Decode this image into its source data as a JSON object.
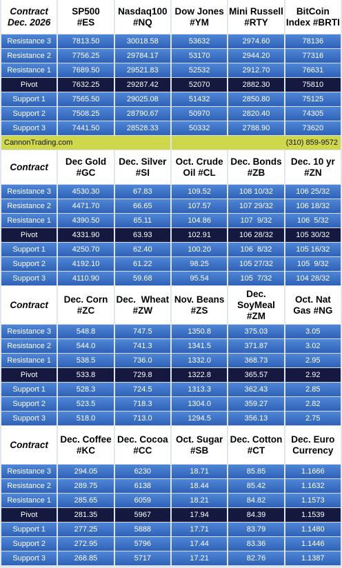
{
  "sections": [
    {
      "header": [
        [
          "Contract",
          "Dec. 2026"
        ],
        [
          "SP500",
          "#ES"
        ],
        [
          "Nasdaq100",
          "#NQ"
        ],
        [
          "Dow Jones",
          "#YM"
        ],
        [
          "Mini Russell",
          "#RTY"
        ],
        [
          "BitCoin",
          "Index #BRTI"
        ]
      ],
      "rows": [
        [
          "Resistance 3",
          "7813.50",
          "30018.58",
          "53632",
          "2974.60",
          "78136"
        ],
        [
          "Resistance 2",
          "7756.25",
          "29784.17",
          "53170",
          "2944.20",
          "77316"
        ],
        [
          "Resistance 1",
          "7689.50",
          "29521.83",
          "52532",
          "2912.70",
          "76631"
        ],
        [
          "Pivot",
          "7632.25",
          "29287.42",
          "52070",
          "2882.30",
          "75810"
        ],
        [
          "Support 1",
          "7565.50",
          "29025.08",
          "51432",
          "2850.80",
          "75125"
        ],
        [
          "Support 2",
          "7508.25",
          "28790.67",
          "50970",
          "2820.40",
          "74305"
        ],
        [
          "Support 3",
          "7441.50",
          "28528.33",
          "50332",
          "2788.90",
          "73620"
        ]
      ]
    },
    {
      "header": [
        [
          "Contract"
        ],
        [
          "Dec Gold",
          "#GC"
        ],
        [
          "Dec. Silver",
          "#SI"
        ],
        [
          "Oct. Crude",
          "Oil #CL"
        ],
        [
          "Dec. Bonds",
          "#ZB"
        ],
        [
          "Dec. 10 yr",
          "#ZN"
        ]
      ],
      "rows": [
        [
          "Resistance 3",
          "4530.30",
          "67.83",
          "109.52",
          "108 10/32",
          "106 25/32"
        ],
        [
          "Resistance 2",
          "4471.70",
          "66.65",
          "107.57",
          "107 29/32",
          "106 18/32"
        ],
        [
          "Resistance 1",
          "4390.50",
          "65.11",
          "104.86",
          "107  9/32",
          "106  5/32"
        ],
        [
          "Pivot",
          "4331.90",
          "63.93",
          "102.91",
          "106 28/32",
          "105 30/32"
        ],
        [
          "Support 1",
          "4250.70",
          "62.40",
          "100.20",
          "106  8/32",
          "105 16/32"
        ],
        [
          "Support 2",
          "4192.10",
          "61.22",
          "98.25",
          "105 27/32",
          "105  9/32"
        ],
        [
          "Support 3",
          "4110.90",
          "59.68",
          "95.54",
          "105  7/32",
          "104 28/32"
        ]
      ]
    },
    {
      "header": [
        [
          "Contract"
        ],
        [
          "Dec. Corn",
          "#ZC"
        ],
        [
          "Dec.  Wheat",
          "#ZW"
        ],
        [
          "Nov. Beans",
          "#ZS"
        ],
        [
          "Dec.",
          "SoyMeal",
          "#ZM"
        ],
        [
          "Oct. Nat",
          "Gas #NG"
        ]
      ],
      "rows": [
        [
          "Resistance 3",
          "548.8",
          "747.5",
          "1350.8",
          "375.03",
          "3.05"
        ],
        [
          "Resistance 2",
          "544.0",
          "741.3",
          "1341.5",
          "371.87",
          "3.02"
        ],
        [
          "Resistance 1",
          "538.5",
          "736.0",
          "1332.0",
          "368.73",
          "2.95"
        ],
        [
          "Pivot",
          "533.8",
          "729.8",
          "1322.8",
          "365.57",
          "2.92"
        ],
        [
          "Support 1",
          "528.3",
          "724.5",
          "1313.3",
          "362.43",
          "2.85"
        ],
        [
          "Support 2",
          "523.5",
          "718.3",
          "1304.0",
          "359.27",
          "2.82"
        ],
        [
          "Support 3",
          "518.0",
          "713.0",
          "1294.5",
          "356.13",
          "2.75"
        ]
      ]
    },
    {
      "header": [
        [
          "Contract"
        ],
        [
          "Dec. Coffee",
          "#KC"
        ],
        [
          "Dec. Cocoa",
          "#CC"
        ],
        [
          "Oct. Sugar",
          "#SB"
        ],
        [
          "Dec. Cotton",
          "#CT"
        ],
        [
          "Dec. Euro",
          "Currency"
        ]
      ],
      "rows": [
        [
          "Resistance 3",
          "294.05",
          "6230",
          "18.71",
          "85.85",
          "1.1666"
        ],
        [
          "Resistance 2",
          "289.75",
          "6138",
          "18.44",
          "85.42",
          "1.1632"
        ],
        [
          "Resistance 1",
          "285.65",
          "6059",
          "18.21",
          "84.82",
          "1.1573"
        ],
        [
          "Pivot",
          "281.35",
          "5967",
          "17.94",
          "84.39",
          "1.1539"
        ],
        [
          "Support 1",
          "277.25",
          "5888",
          "17.71",
          "83.79",
          "1.1480"
        ],
        [
          "Support 2",
          "272.95",
          "5796",
          "17.44",
          "83.36",
          "1.1446"
        ],
        [
          "Support 3",
          "268.85",
          "5717",
          "17.21",
          "82.76",
          "1.1387"
        ]
      ]
    }
  ],
  "banner": {
    "left": "CannonTrading.com",
    "right": "(310) 859-9572"
  }
}
